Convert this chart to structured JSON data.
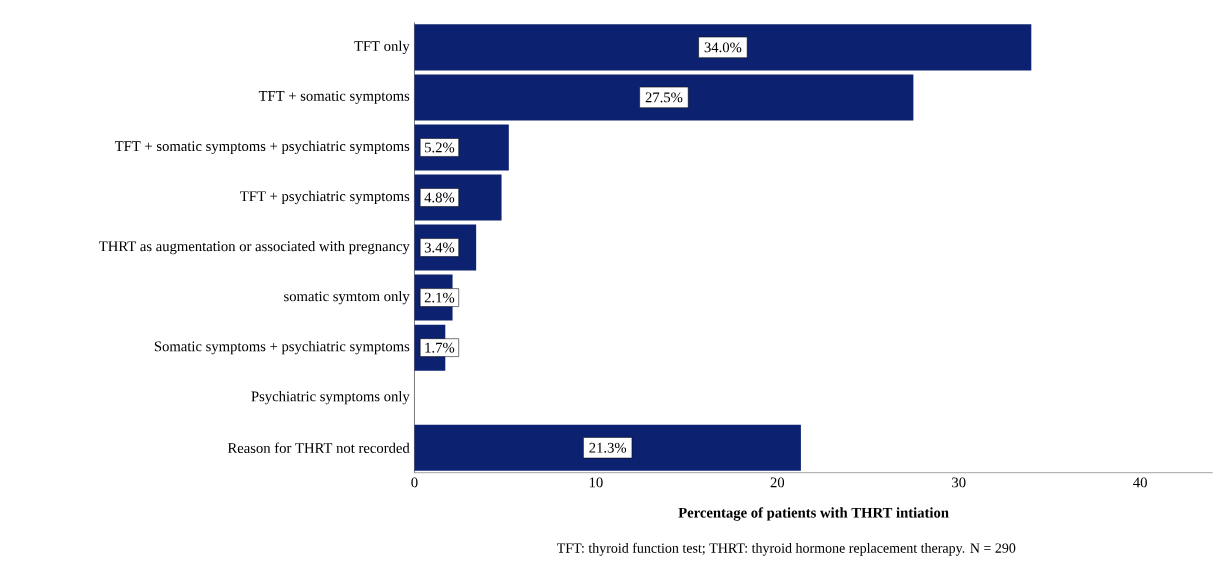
{
  "chart_data": {
    "type": "bar",
    "orientation": "horizontal",
    "xlabel": "Percentage of patients with THRT intiation",
    "categories": [
      "TFT only",
      "TFT + somatic symptoms",
      "TFT + somatic symptoms + psychiatric symptoms",
      "TFT + psychiatric symptoms",
      "THRT as augmentation or associated with pregnancy",
      "somatic symtom only",
      "Somatic symptoms + psychiatric symptoms",
      "Psychiatric symptoms only",
      "Reason for THRT not recorded"
    ],
    "values": [
      34.0,
      27.5,
      5.2,
      4.8,
      3.4,
      2.1,
      1.7,
      0,
      21.3
    ],
    "value_labels": [
      "34.0%",
      "27.5%",
      "5.2%",
      "4.8%",
      "3.4%",
      "2.1%",
      "1.7%",
      null,
      "21.3%"
    ],
    "color": "#0c2270",
    "xlim": [
      0,
      44
    ],
    "xticks": [
      0,
      10,
      20,
      30,
      40
    ],
    "annotations": [
      "TFT: thyroid function test; THRT: thyroid hormone replacement therapy. N = 290"
    ]
  }
}
